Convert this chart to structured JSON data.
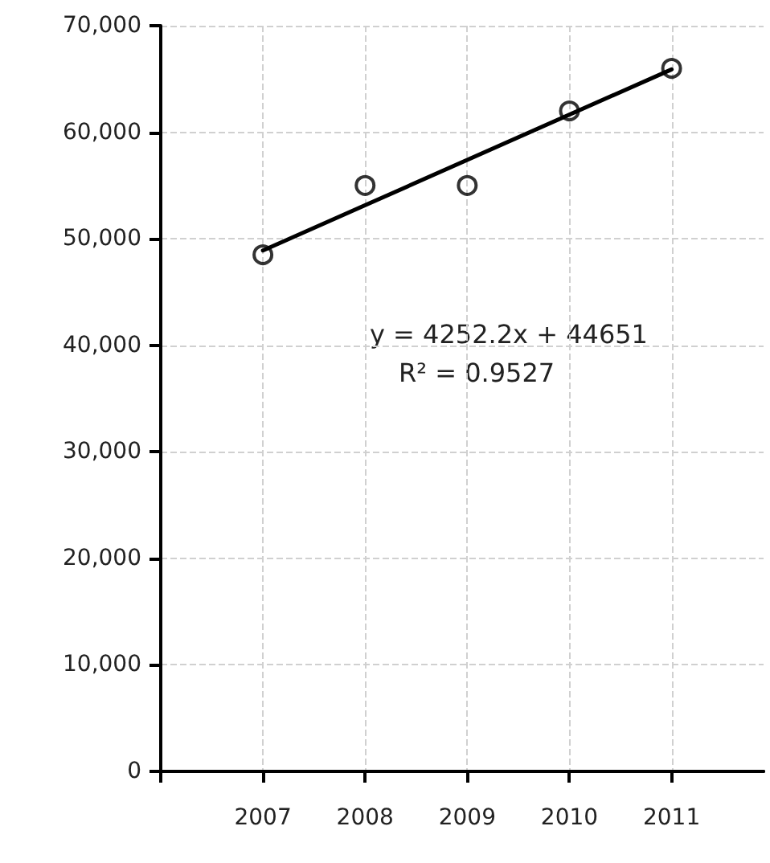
{
  "chart_data": {
    "type": "scatter",
    "x": [
      2007,
      2008,
      2009,
      2010,
      2011
    ],
    "series": [
      {
        "type": "scatter",
        "color": "#000000",
        "marker": "circle",
        "values": [
          48500,
          55000,
          55000,
          62000,
          66000
        ]
      },
      {
        "type": "line",
        "color": "#000000",
        "marker": "none",
        "line_style": "solid",
        "x": [
          2007,
          2011
        ],
        "values": [
          48900,
          65900
        ]
      }
    ],
    "xlim": [
      2006,
      2011.9
    ],
    "xticks": [
      {
        "value": 2006,
        "label": null
      },
      2007,
      2008,
      2009,
      2010,
      2011
    ],
    "ylim": [
      0,
      70000
    ],
    "yticks": [
      0,
      {
        "value": 10000,
        "label": "10,000"
      },
      {
        "value": 20000,
        "label": "20,000"
      },
      {
        "value": 30000,
        "label": "30,000"
      },
      {
        "value": 40000,
        "label": "40,000"
      },
      {
        "value": 50000,
        "label": "50,000"
      },
      {
        "value": 60000,
        "label": "60,000"
      },
      {
        "value": 70000,
        "label": "70,000"
      }
    ],
    "grid": true,
    "annotations": [
      "y = 4252.2x + 44651",
      "R² = 0.9527"
    ]
  }
}
